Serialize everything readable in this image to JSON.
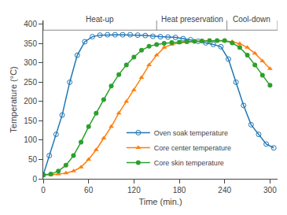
{
  "chart_data": {
    "type": "line",
    "xlabel": "Time (min.)",
    "ylabel": "Temperature (°C)",
    "xlim": [
      0,
      310
    ],
    "ylim": [
      0,
      410
    ],
    "xticks": [
      0,
      60,
      120,
      180,
      240,
      300
    ],
    "yticks": [
      0,
      50,
      100,
      150,
      200,
      250,
      300,
      350,
      400
    ],
    "grid": false,
    "legend": "lower center",
    "series": [
      {
        "name": "Oven soak temperature",
        "marker": "circle-open",
        "line_style": "solid",
        "x": [
          0,
          8,
          17,
          25,
          35,
          45,
          55,
          65,
          75,
          85,
          95,
          105,
          115,
          125,
          135,
          145,
          155,
          165,
          175,
          185,
          195,
          205,
          215,
          225,
          235,
          245,
          255,
          265,
          275,
          285,
          295,
          305
        ],
        "values": [
          10,
          60,
          115,
          165,
          250,
          320,
          355,
          368,
          372,
          373,
          373,
          373,
          373,
          372,
          371,
          369,
          368,
          367,
          366,
          363,
          360,
          356,
          352,
          348,
          342,
          310,
          250,
          190,
          140,
          115,
          90,
          80
        ]
      },
      {
        "name": "Core center temperature",
        "marker": "triangle-up",
        "line_style": "solid",
        "x": [
          0,
          10,
          20,
          30,
          40,
          50,
          60,
          70,
          80,
          90,
          100,
          110,
          120,
          130,
          140,
          150,
          160,
          170,
          180,
          190,
          200,
          210,
          220,
          230,
          240,
          250,
          260,
          270,
          280,
          290,
          300
        ],
        "values": [
          10,
          10,
          12,
          15,
          20,
          30,
          50,
          75,
          105,
          135,
          170,
          200,
          230,
          262,
          295,
          320,
          340,
          348,
          352,
          354,
          356,
          357,
          357,
          357,
          357,
          355,
          350,
          340,
          325,
          305,
          285
        ]
      },
      {
        "name": "Core skin temperature",
        "marker": "circle",
        "line_style": "solid",
        "x": [
          0,
          10,
          20,
          30,
          40,
          50,
          60,
          70,
          80,
          90,
          100,
          110,
          120,
          130,
          140,
          150,
          160,
          170,
          180,
          190,
          200,
          210,
          220,
          230,
          240,
          250,
          260,
          270,
          280,
          290,
          300
        ],
        "values": [
          10,
          12,
          20,
          35,
          60,
          95,
          135,
          170,
          205,
          240,
          270,
          295,
          315,
          333,
          343,
          348,
          351,
          353,
          354,
          355,
          356,
          357,
          358,
          358,
          358,
          352,
          340,
          320,
          295,
          268,
          242
        ]
      }
    ],
    "phase_bar": {
      "y": 385,
      "x": [
        0,
        150,
        243,
        310
      ]
    },
    "annotations": [
      {
        "text": "Heat-up",
        "x": 75,
        "y": 397
      },
      {
        "text": "Heat preservation",
        "x": 197,
        "y": 397
      },
      {
        "text": "Cool-down",
        "x": 276,
        "y": 397
      }
    ]
  }
}
